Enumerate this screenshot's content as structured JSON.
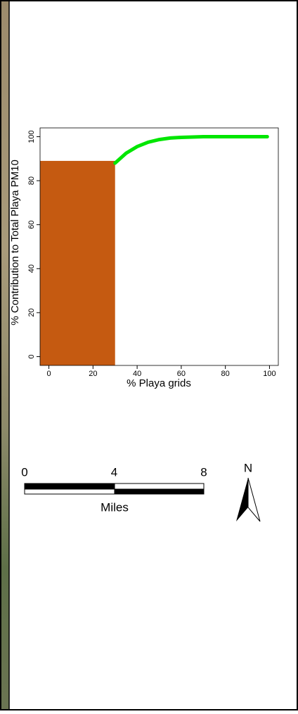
{
  "chart_data": {
    "type": "line",
    "ylabel": "% Contribution to Total Playa PM10",
    "xlabel": "% Playa grids",
    "xlim": [
      -4,
      104
    ],
    "ylim": [
      -4,
      104
    ],
    "xticks": [
      0,
      20,
      40,
      60,
      80,
      100
    ],
    "yticks": [
      0,
      20,
      40,
      60,
      80,
      100
    ],
    "bar": {
      "x": 30,
      "y": 89,
      "color": "#c55a11"
    },
    "x": [
      30,
      35,
      40,
      45,
      50,
      55,
      60,
      70,
      80,
      90,
      99
    ],
    "series": [
      {
        "color": "#00e600",
        "values": [
          88,
          92.5,
          95.5,
          97.5,
          98.7,
          99.4,
          99.7,
          100,
          100,
          100,
          100
        ]
      }
    ]
  },
  "scale_bar": {
    "ticks": [
      0,
      4,
      8
    ],
    "unit": "Miles"
  },
  "north_arrow": "N"
}
